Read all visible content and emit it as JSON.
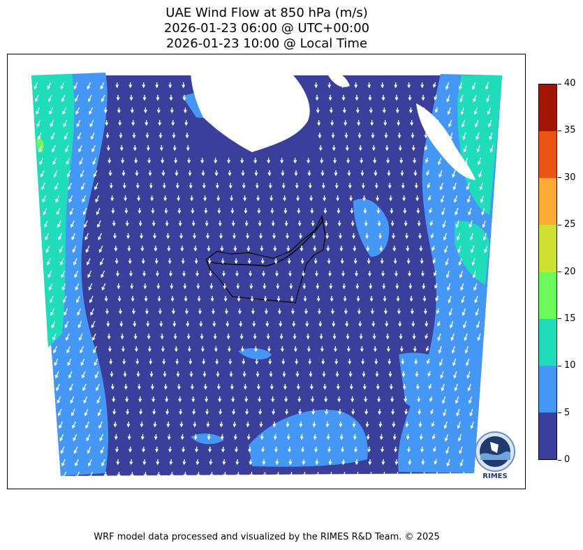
{
  "title": {
    "line1": "UAE Wind Flow at 850 hPa (m/s)",
    "line2": "2026-01-23 06:00 @ UTC+00:00",
    "line3": "2026-01-23 10:00 @ Local Time"
  },
  "colorbar": {
    "ticks": [
      "0",
      "5",
      "10",
      "15",
      "20",
      "25",
      "30",
      "35",
      "40"
    ],
    "colors": [
      "#3b3f9c",
      "#4597f5",
      "#1fdcbb",
      "#6cf95a",
      "#cde22f",
      "#fbac37",
      "#eb5413",
      "#a11503"
    ]
  },
  "map": {
    "background_color": "#3b3f9c",
    "arrow_color": "#ffffff",
    "land_mask_color": "#ffffff",
    "border_color": "#000000"
  },
  "logo": {
    "text": "RIMES"
  },
  "footer": {
    "credit": "WRF model data processed and visualized by the RIMES R&D Team. © 2025"
  }
}
